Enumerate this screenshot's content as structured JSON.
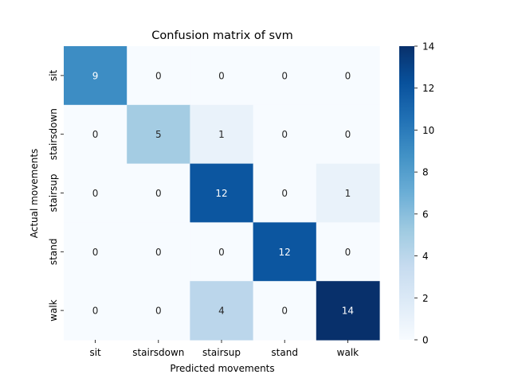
{
  "chart_data": {
    "type": "heatmap",
    "title": "Confusion matrix of svm",
    "xlabel": "Predicted movements",
    "ylabel": "Actual movements",
    "x_categories": [
      "sit",
      "stairsdown",
      "stairsup",
      "stand",
      "walk"
    ],
    "y_categories": [
      "sit",
      "stairsdown",
      "stairsup",
      "stand",
      "walk"
    ],
    "values": [
      [
        9,
        0,
        0,
        0,
        0
      ],
      [
        0,
        5,
        1,
        0,
        0
      ],
      [
        0,
        0,
        12,
        0,
        1
      ],
      [
        0,
        0,
        0,
        12,
        0
      ],
      [
        0,
        0,
        4,
        0,
        14
      ]
    ],
    "colormap": "Blues",
    "colorbar": {
      "min": 0,
      "max": 14,
      "ticks": [
        0,
        2,
        4,
        6,
        8,
        10,
        12,
        14
      ]
    },
    "annotations": true,
    "grid": false
  }
}
